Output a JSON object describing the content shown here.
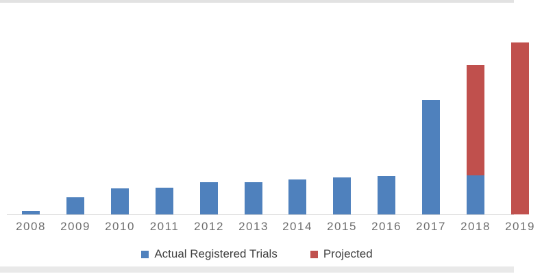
{
  "chart_data": {
    "type": "bar",
    "stacked": true,
    "title": "",
    "xlabel": "",
    "ylabel": "",
    "y_axis_visible": false,
    "grid": false,
    "value_units": "arbitrary (no value axis shown; values estimated proportionally from bar heights)",
    "ylim": [
      0,
      255
    ],
    "categories": [
      "2008",
      "2009",
      "2010",
      "2011",
      "2012",
      "2013",
      "2014",
      "2015",
      "2016",
      "2017",
      "2018",
      "2019"
    ],
    "last_category_partially_cut_off": true,
    "series": [
      {
        "name": "Actual Registered Trials",
        "color": "#4F81BD",
        "values": [
          5,
          25,
          38,
          39,
          47,
          47,
          51,
          54,
          56,
          167,
          57,
          0
        ]
      },
      {
        "name": "Projected",
        "color": "#C0504D",
        "values": [
          0,
          0,
          0,
          0,
          0,
          0,
          0,
          0,
          0,
          0,
          161,
          251
        ]
      }
    ],
    "legend": {
      "position": "bottom",
      "items": [
        "Actual Registered Trials",
        "Projected"
      ]
    }
  },
  "colors": {
    "actual_series": "#4F81BD",
    "projected_series": "#C0504D",
    "axis_line": "#D6D6D6",
    "tick_label_text": "#6E6E6E",
    "legend_text": "#404040",
    "page_border_strips": "#E2E2E2"
  }
}
